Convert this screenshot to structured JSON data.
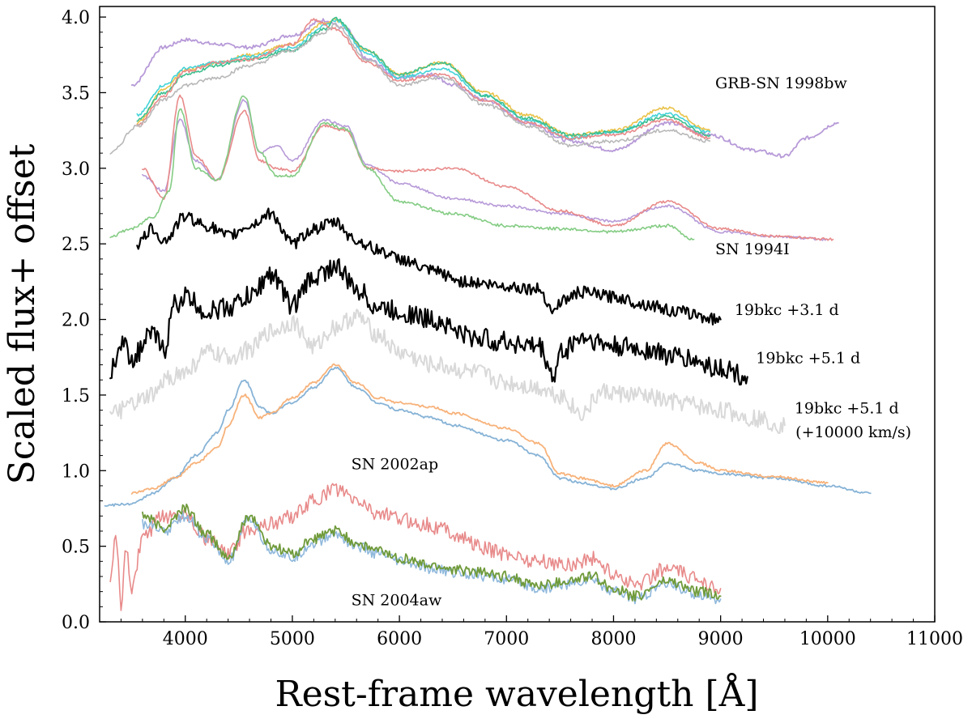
{
  "chart_data": {
    "type": "line",
    "title": "",
    "xlabel": "Rest-frame wavelength [Å]",
    "ylabel": "Scaled flux+ offset",
    "xlim": [
      3200,
      11000
    ],
    "ylim": [
      0.0,
      4.07
    ],
    "xticks": [
      4000,
      5000,
      6000,
      7000,
      8000,
      9000,
      10000,
      11000
    ],
    "yticks": [
      0.0,
      0.5,
      1.0,
      1.5,
      2.0,
      2.5,
      3.0,
      3.5,
      4.0
    ],
    "xtick_labels": [
      "4000",
      "5000",
      "6000",
      "7000",
      "8000",
      "9000",
      "10000",
      "11000"
    ],
    "ytick_labels": [
      "0.0",
      "0.5",
      "1.0",
      "1.5",
      "2.0",
      "2.5",
      "3.0",
      "3.5",
      "4.0"
    ],
    "grid": false,
    "annotations": [
      {
        "text": "GRB-SN 1998bw",
        "x": 8950,
        "y": 3.53
      },
      {
        "text": "SN 1994I",
        "x": 8950,
        "y": 2.43
      },
      {
        "text": "19bkc +3.1 d",
        "x": 9130,
        "y": 2.03
      },
      {
        "text": "19bkc +5.1 d",
        "x": 9330,
        "y": 1.71
      },
      {
        "text": "19bkc +5.1 d",
        "x": 9690,
        "y": 1.38
      },
      {
        "text": "(+10000 km/s)",
        "x": 9700,
        "y": 1.22
      },
      {
        "text": "SN 2002ap",
        "x": 5550,
        "y": 1.01
      },
      {
        "text": "SN 2004aw",
        "x": 5550,
        "y": 0.11
      }
    ],
    "series": [
      {
        "name": "SN 1998bw (purple)",
        "color": "#b79ad8",
        "width": 1.8,
        "noise": 0.012,
        "x": [
          3500,
          3800,
          4000,
          4300,
          4600,
          5000,
          5300,
          5500,
          5700,
          6000,
          6300,
          6500,
          6800,
          7200,
          7600,
          8000,
          8500,
          8900,
          9300,
          9600,
          9800,
          10100
        ],
        "y": [
          3.55,
          3.8,
          3.85,
          3.82,
          3.8,
          3.88,
          3.98,
          3.92,
          3.72,
          3.6,
          3.62,
          3.55,
          3.45,
          3.3,
          3.18,
          3.12,
          3.3,
          3.22,
          3.12,
          3.08,
          3.2,
          3.3
        ]
      },
      {
        "name": "SN 1998bw (orange)",
        "color": "#e9c24a",
        "width": 1.6,
        "noise": 0.01,
        "x": [
          3550,
          3800,
          4000,
          4300,
          4600,
          5000,
          5300,
          5400,
          5700,
          6000,
          6400,
          6800,
          7200,
          7600,
          8000,
          8500,
          8900
        ],
        "y": [
          3.3,
          3.52,
          3.65,
          3.7,
          3.75,
          3.82,
          3.96,
          3.98,
          3.78,
          3.62,
          3.7,
          3.5,
          3.35,
          3.22,
          3.25,
          3.4,
          3.25
        ]
      },
      {
        "name": "SN 1998bw (cyan)",
        "color": "#43d3d8",
        "width": 1.6,
        "noise": 0.01,
        "x": [
          3550,
          3800,
          4000,
          4300,
          4600,
          5000,
          5300,
          5400,
          5700,
          6000,
          6400,
          6800,
          7200,
          7600,
          8000,
          8500,
          8900
        ],
        "y": [
          3.35,
          3.55,
          3.66,
          3.7,
          3.74,
          3.8,
          3.94,
          3.98,
          3.76,
          3.6,
          3.66,
          3.48,
          3.32,
          3.2,
          3.24,
          3.36,
          3.24
        ]
      },
      {
        "name": "SN 1998bw (green)",
        "color": "#3dbf8f",
        "width": 1.6,
        "noise": 0.01,
        "x": [
          3550,
          3800,
          4000,
          4300,
          4600,
          5000,
          5300,
          5400,
          5700,
          6000,
          6400,
          6800,
          7200,
          7600,
          8000,
          8500,
          8900
        ],
        "y": [
          3.32,
          3.5,
          3.62,
          3.68,
          3.72,
          3.78,
          3.92,
          3.99,
          3.78,
          3.62,
          3.7,
          3.48,
          3.33,
          3.22,
          3.24,
          3.34,
          3.22
        ]
      },
      {
        "name": "SN 1998bw (red)",
        "color": "#e88a8a",
        "width": 1.6,
        "noise": 0.01,
        "x": [
          3550,
          3800,
          4000,
          4300,
          4600,
          5000,
          5200,
          5400,
          5700,
          6000,
          6400,
          6800,
          7200,
          7600,
          8000,
          8500,
          8900
        ],
        "y": [
          3.28,
          3.48,
          3.64,
          3.7,
          3.72,
          3.82,
          3.98,
          3.92,
          3.7,
          3.58,
          3.62,
          3.45,
          3.3,
          3.2,
          3.22,
          3.32,
          3.2
        ]
      },
      {
        "name": "SN 1998bw (grey)",
        "color": "#b8b8b8",
        "width": 1.6,
        "noise": 0.012,
        "x": [
          3300,
          3550,
          3800,
          4000,
          4300,
          4600,
          5000,
          5300,
          5400,
          5700,
          6000,
          6400,
          6800,
          7200,
          7600,
          8000,
          8500,
          8900
        ],
        "y": [
          3.1,
          3.28,
          3.45,
          3.55,
          3.6,
          3.68,
          3.78,
          3.9,
          3.95,
          3.72,
          3.55,
          3.6,
          3.42,
          3.28,
          3.15,
          3.18,
          3.25,
          3.18
        ]
      },
      {
        "name": "SN 1994I (purple)",
        "color": "#b79ad8",
        "width": 1.6,
        "noise": 0.008,
        "x": [
          3600,
          3800,
          3950,
          4100,
          4300,
          4550,
          4700,
          4850,
          5000,
          5300,
          5500,
          5700,
          6000,
          6500,
          7000,
          7500,
          8000,
          8500,
          9000,
          9500,
          10000
        ],
        "y": [
          2.95,
          2.85,
          3.32,
          3.05,
          2.92,
          3.45,
          3.1,
          3.15,
          3.05,
          3.32,
          3.28,
          3.02,
          2.9,
          2.8,
          2.75,
          2.7,
          2.65,
          2.75,
          2.58,
          2.55,
          2.53
        ]
      },
      {
        "name": "SN 1994I (red)",
        "color": "#e88a8a",
        "width": 1.6,
        "noise": 0.008,
        "x": [
          3600,
          3800,
          3950,
          4100,
          4300,
          4550,
          4700,
          4850,
          5000,
          5300,
          5500,
          5700,
          6000,
          6500,
          7000,
          7500,
          8000,
          8500,
          9000,
          9500,
          10050
        ],
        "y": [
          3.0,
          2.8,
          3.48,
          3.08,
          2.92,
          3.38,
          3.05,
          3.0,
          2.98,
          3.28,
          3.25,
          3.0,
          2.98,
          3.0,
          2.88,
          2.72,
          2.62,
          2.78,
          2.6,
          2.55,
          2.53
        ]
      },
      {
        "name": "SN 1994I (green)",
        "color": "#84cc84",
        "width": 1.6,
        "noise": 0.01,
        "x": [
          3300,
          3500,
          3700,
          3850,
          3950,
          4100,
          4300,
          4550,
          4700,
          4850,
          5000,
          5300,
          5500,
          5700,
          6000,
          6500,
          7000,
          7500,
          8000,
          8500,
          8750
        ],
        "y": [
          2.55,
          2.6,
          2.68,
          2.85,
          3.4,
          3.0,
          2.92,
          3.48,
          3.1,
          2.95,
          2.95,
          3.3,
          3.26,
          3.0,
          2.78,
          2.7,
          2.62,
          2.6,
          2.58,
          2.62,
          2.53
        ]
      },
      {
        "name": "19bkc +3.1 d",
        "color": "#000000",
        "width": 2.2,
        "noise": 0.04,
        "x": [
          3550,
          3700,
          3800,
          4000,
          4200,
          4400,
          4600,
          4800,
          5000,
          5200,
          5400,
          5600,
          5800,
          6000,
          6300,
          6600,
          7000,
          7300,
          7450,
          7500,
          7700,
          8000,
          8300,
          8600,
          9000
        ],
        "y": [
          2.5,
          2.6,
          2.52,
          2.68,
          2.62,
          2.55,
          2.62,
          2.7,
          2.5,
          2.6,
          2.64,
          2.52,
          2.46,
          2.4,
          2.32,
          2.25,
          2.22,
          2.2,
          2.05,
          2.12,
          2.18,
          2.15,
          2.1,
          2.05,
          2.0
        ]
      },
      {
        "name": "19bkc +5.1 d",
        "color": "#000000",
        "width": 2.2,
        "noise": 0.07,
        "x": [
          3300,
          3400,
          3500,
          3700,
          3800,
          3900,
          4000,
          4200,
          4400,
          4600,
          4800,
          5000,
          5200,
          5400,
          5600,
          5800,
          6000,
          6300,
          6700,
          7000,
          7300,
          7450,
          7500,
          7700,
          8000,
          8300,
          8600,
          9000,
          9250
        ],
        "y": [
          1.65,
          1.85,
          1.75,
          1.9,
          1.8,
          2.1,
          2.15,
          2.05,
          2.08,
          2.15,
          2.3,
          2.1,
          2.28,
          2.35,
          2.2,
          2.08,
          2.05,
          2.0,
          1.88,
          1.85,
          1.82,
          1.62,
          1.78,
          1.88,
          1.82,
          1.8,
          1.75,
          1.68,
          1.62
        ]
      },
      {
        "name": "19bkc +5.1 d (+10000 km/s)",
        "color": "#d9d9d9",
        "width": 2.0,
        "noise": 0.06,
        "x": [
          3300,
          3400,
          3550,
          3700,
          3850,
          4000,
          4200,
          4400,
          4600,
          4800,
          5000,
          5200,
          5400,
          5600,
          5800,
          6000,
          6300,
          6700,
          7000,
          7300,
          7500,
          7700,
          7900,
          8200,
          8600,
          9000,
          9300,
          9600
        ],
        "y": [
          1.35,
          1.4,
          1.45,
          1.5,
          1.62,
          1.65,
          1.78,
          1.75,
          1.8,
          1.92,
          1.98,
          1.82,
          1.95,
          2.02,
          1.9,
          1.78,
          1.7,
          1.65,
          1.58,
          1.55,
          1.5,
          1.38,
          1.52,
          1.5,
          1.45,
          1.4,
          1.35,
          1.3
        ]
      },
      {
        "name": "SN 2002ap (blue)",
        "color": "#87b3d6",
        "width": 1.8,
        "noise": 0.008,
        "x": [
          3250,
          3500,
          3700,
          3900,
          4100,
          4300,
          4400,
          4550,
          4700,
          4800,
          5000,
          5200,
          5400,
          5600,
          5800,
          6000,
          6300,
          6500,
          7000,
          7300,
          7500,
          7700,
          8000,
          8300,
          8500,
          8800,
          9000,
          9500,
          10000,
          10400
        ],
        "y": [
          0.77,
          0.78,
          0.85,
          0.95,
          1.1,
          1.25,
          1.4,
          1.6,
          1.42,
          1.38,
          1.45,
          1.55,
          1.68,
          1.55,
          1.45,
          1.4,
          1.35,
          1.3,
          1.2,
          1.1,
          0.95,
          0.92,
          0.88,
          0.95,
          1.05,
          1.0,
          0.98,
          0.95,
          0.9,
          0.85
        ]
      },
      {
        "name": "SN 2002ap (orange)",
        "color": "#f7b27a",
        "width": 1.8,
        "noise": 0.008,
        "x": [
          3500,
          3700,
          3900,
          4100,
          4300,
          4400,
          4550,
          4700,
          4800,
          5000,
          5200,
          5400,
          5600,
          5800,
          6000,
          6300,
          6500,
          7000,
          7300,
          7500,
          7700,
          8000,
          8300,
          8500,
          8800,
          9000,
          9500,
          10000
        ],
        "y": [
          0.85,
          0.88,
          0.95,
          1.05,
          1.15,
          1.3,
          1.5,
          1.35,
          1.38,
          1.48,
          1.58,
          1.7,
          1.58,
          1.48,
          1.45,
          1.42,
          1.38,
          1.28,
          1.18,
          0.98,
          0.95,
          0.9,
          1.0,
          1.18,
          1.05,
          1.0,
          0.96,
          0.92
        ]
      },
      {
        "name": "SN 2004aw (red)",
        "color": "#e88a8a",
        "width": 1.6,
        "noise": 0.05,
        "x": [
          3300,
          3350,
          3400,
          3450,
          3500,
          3600,
          3800,
          4000,
          4200,
          4400,
          4600,
          4800,
          5000,
          5200,
          5400,
          5600,
          5800,
          6000,
          6200,
          6400,
          6600,
          6800,
          7000,
          7300,
          7600,
          7800,
          8000,
          8200,
          8500,
          8800,
          9000
        ],
        "y": [
          0.3,
          0.6,
          0.1,
          0.5,
          0.2,
          0.55,
          0.7,
          0.72,
          0.55,
          0.45,
          0.62,
          0.65,
          0.7,
          0.8,
          0.88,
          0.8,
          0.72,
          0.68,
          0.65,
          0.62,
          0.55,
          0.48,
          0.45,
          0.4,
          0.38,
          0.42,
          0.32,
          0.25,
          0.35,
          0.28,
          0.22
        ]
      },
      {
        "name": "SN 2004aw (blue)",
        "color": "#8fb8dc",
        "width": 1.6,
        "noise": 0.035,
        "x": [
          3600,
          3800,
          4000,
          4200,
          4400,
          4600,
          4800,
          5000,
          5200,
          5400,
          5600,
          5800,
          6000,
          6300,
          6600,
          7000,
          7300,
          7600,
          7800,
          8000,
          8200,
          8500,
          8800,
          9000
        ],
        "y": [
          0.65,
          0.6,
          0.7,
          0.55,
          0.4,
          0.68,
          0.48,
          0.42,
          0.52,
          0.58,
          0.5,
          0.45,
          0.4,
          0.35,
          0.32,
          0.28,
          0.22,
          0.25,
          0.28,
          0.2,
          0.15,
          0.25,
          0.18,
          0.15
        ]
      },
      {
        "name": "SN 2004aw (green)",
        "color": "#6f9a3a",
        "width": 1.8,
        "noise": 0.035,
        "x": [
          3600,
          3800,
          4000,
          4200,
          4400,
          4600,
          4800,
          5000,
          5200,
          5400,
          5600,
          5800,
          6000,
          6300,
          6600,
          7000,
          7300,
          7600,
          7800,
          8000,
          8200,
          8500,
          8800,
          9000
        ],
        "y": [
          0.7,
          0.62,
          0.75,
          0.58,
          0.42,
          0.7,
          0.5,
          0.45,
          0.55,
          0.6,
          0.52,
          0.47,
          0.42,
          0.37,
          0.34,
          0.3,
          0.24,
          0.27,
          0.3,
          0.22,
          0.17,
          0.27,
          0.2,
          0.17
        ]
      }
    ]
  }
}
